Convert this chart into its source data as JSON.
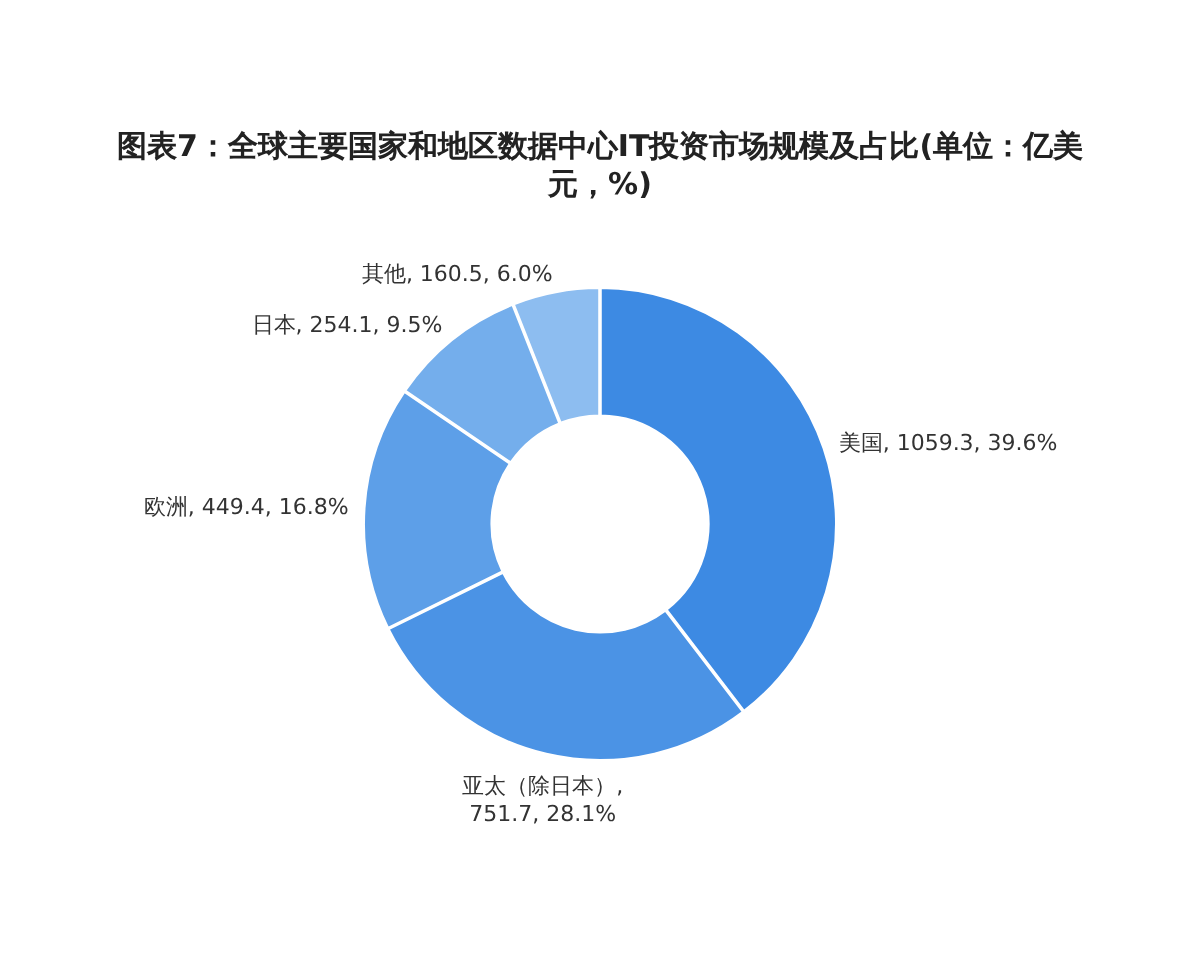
{
  "chart_data": {
    "type": "donut",
    "title": "图表7：全球主要国家和地区数据中心IT投资市场规模及占比(单位：亿美元，%)",
    "categories": [
      "美国",
      "亚太（除日本）",
      "欧洲",
      "日本",
      "其他"
    ],
    "values": [
      1059.3,
      751.7,
      449.4,
      254.1,
      160.5
    ],
    "value_labels": [
      ", 1059.3, 39.6%",
      ", 751.7, 28.1%",
      ", 449.4, 16.8%",
      ", 254.1, 9.5%",
      ", 160.5, 6.0%"
    ],
    "colors": [
      "#3d8ae3",
      "#4b93e5",
      "#5d9fe8",
      "#74aeec",
      "#8dbdf0"
    ]
  }
}
